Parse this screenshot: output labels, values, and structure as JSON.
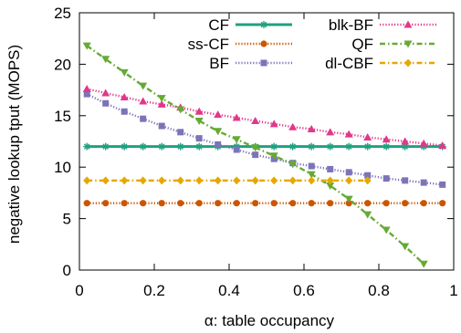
{
  "chart_data": {
    "type": "line",
    "title": "",
    "xlabel": "α: table occupancy",
    "ylabel": "negative lookup tput (MOPS)",
    "xlim": [
      0,
      1
    ],
    "ylim": [
      0,
      25
    ],
    "xticks": [
      0,
      0.2,
      0.4,
      0.6,
      0.8,
      1
    ],
    "xtick_labels": [
      "0",
      "0.2",
      "0.4",
      "0.6",
      "0.8",
      "1"
    ],
    "yticks": [
      0,
      5,
      10,
      15,
      20,
      25
    ],
    "ytick_labels": [
      "0",
      "5",
      "10",
      "15",
      "20",
      "25"
    ],
    "grid": false,
    "legend": "top-right, two columns",
    "series": [
      {
        "name": "CF",
        "color": "#20a080",
        "marker": "star",
        "dash": "solid",
        "x": [
          0.02,
          0.07,
          0.12,
          0.17,
          0.22,
          0.27,
          0.32,
          0.37,
          0.42,
          0.47,
          0.52,
          0.57,
          0.62,
          0.67,
          0.72,
          0.77,
          0.82,
          0.87,
          0.92,
          0.97
        ],
        "y": [
          12,
          12,
          12,
          12,
          12,
          12,
          12,
          12,
          12,
          12,
          12,
          12,
          12,
          12,
          12,
          12,
          12,
          12,
          12,
          12
        ]
      },
      {
        "name": "ss-CF",
        "color": "#cc5500",
        "marker": "circle",
        "dash": "dotted",
        "x": [
          0.02,
          0.07,
          0.12,
          0.17,
          0.22,
          0.27,
          0.32,
          0.37,
          0.42,
          0.47,
          0.52,
          0.57,
          0.62,
          0.67,
          0.72,
          0.77,
          0.82,
          0.87,
          0.92,
          0.97
        ],
        "y": [
          6.5,
          6.5,
          6.5,
          6.5,
          6.5,
          6.5,
          6.5,
          6.5,
          6.5,
          6.5,
          6.5,
          6.5,
          6.5,
          6.5,
          6.5,
          6.5,
          6.5,
          6.5,
          6.5,
          6.5
        ]
      },
      {
        "name": "BF",
        "color": "#7b74b8",
        "marker": "square",
        "dash": "dotted",
        "x": [
          0.02,
          0.07,
          0.12,
          0.17,
          0.22,
          0.27,
          0.32,
          0.37,
          0.42,
          0.47,
          0.52,
          0.57,
          0.62,
          0.67,
          0.72,
          0.77,
          0.82,
          0.87,
          0.92,
          0.97
        ],
        "y": [
          17.1,
          16.2,
          15.4,
          14.7,
          14.0,
          13.4,
          12.8,
          12.2,
          11.7,
          11.2,
          10.8,
          10.4,
          10.1,
          9.8,
          9.5,
          9.2,
          8.9,
          8.7,
          8.5,
          8.3
        ]
      },
      {
        "name": "blk-BF",
        "color": "#e0388a",
        "marker": "triangle-up",
        "dash": "dotted",
        "x": [
          0.02,
          0.07,
          0.12,
          0.17,
          0.22,
          0.27,
          0.32,
          0.37,
          0.42,
          0.47,
          0.52,
          0.57,
          0.62,
          0.67,
          0.72,
          0.77,
          0.82,
          0.87,
          0.92,
          0.97
        ],
        "y": [
          17.6,
          17.2,
          16.8,
          16.4,
          16.1,
          15.8,
          15.4,
          15.1,
          14.8,
          14.5,
          14.2,
          13.9,
          13.7,
          13.4,
          13.2,
          12.9,
          12.7,
          12.5,
          12.3,
          12.1
        ]
      },
      {
        "name": "QF",
        "color": "#66aa33",
        "marker": "triangle-down",
        "dash": "dashdot",
        "x": [
          0.02,
          0.07,
          0.12,
          0.17,
          0.22,
          0.27,
          0.32,
          0.37,
          0.42,
          0.47,
          0.52,
          0.57,
          0.62,
          0.67,
          0.72,
          0.77,
          0.82,
          0.87,
          0.92
        ],
        "y": [
          21.8,
          20.5,
          19.2,
          17.9,
          16.7,
          15.6,
          14.5,
          13.5,
          12.7,
          11.9,
          11.1,
          10.3,
          9.3,
          8.2,
          6.9,
          5.4,
          3.9,
          2.3,
          0.6
        ]
      },
      {
        "name": "dl-CBF",
        "color": "#e6a800",
        "marker": "diamond",
        "dash": "dashdot",
        "x": [
          0.02,
          0.07,
          0.12,
          0.17,
          0.22,
          0.27,
          0.32,
          0.37,
          0.42,
          0.47,
          0.52,
          0.57,
          0.62,
          0.67,
          0.72,
          0.77
        ],
        "y": [
          8.7,
          8.7,
          8.7,
          8.7,
          8.7,
          8.7,
          8.7,
          8.7,
          8.7,
          8.7,
          8.7,
          8.7,
          8.7,
          8.7,
          8.7,
          8.7
        ]
      }
    ]
  }
}
